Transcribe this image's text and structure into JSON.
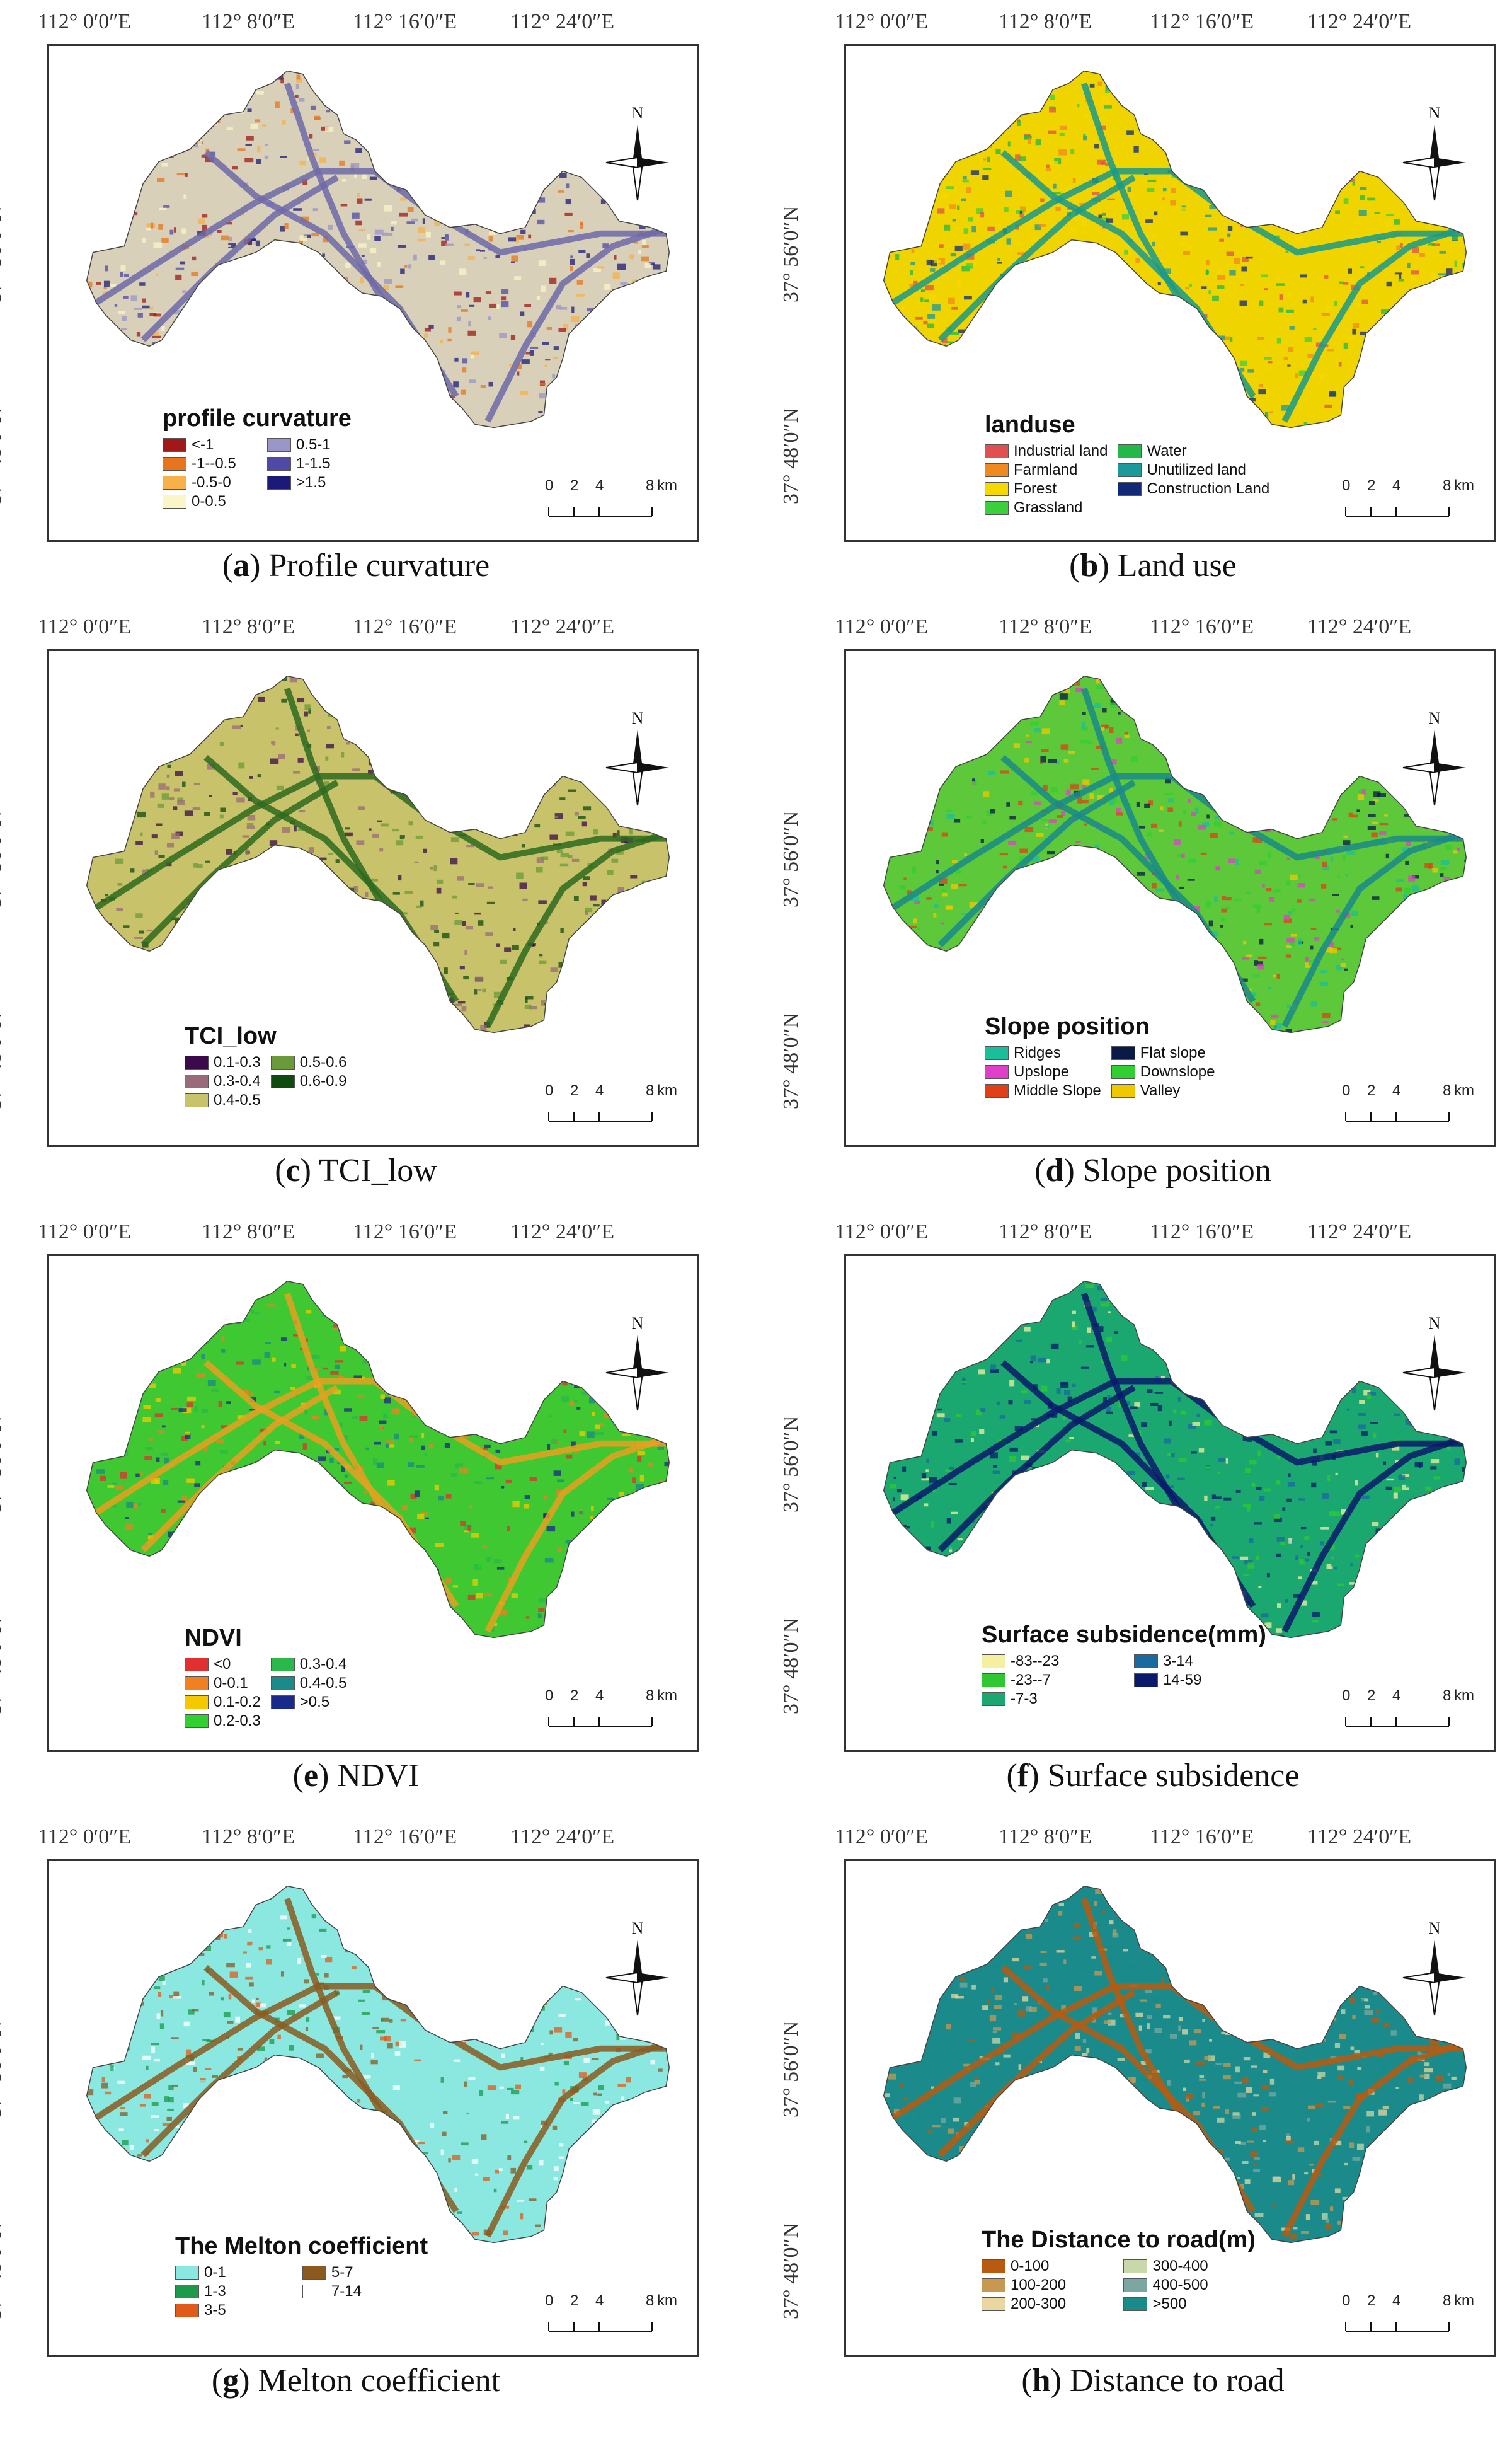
{
  "longitudes": [
    "112°  0′0″E",
    "112°  8′0″E",
    "112°  16′0″E",
    "112°  24′0″E"
  ],
  "latitudes": [
    "37°  56′0″N",
    "37°  48′0″N"
  ],
  "north_label": "N",
  "scale": {
    "ticks": [
      "0",
      "2",
      "4",
      "8"
    ],
    "unit": "km"
  },
  "panels": [
    {
      "letter": "a",
      "caption": "Profile curvature",
      "legend_title": "profile curvature",
      "legend_cols": 2,
      "base_color": "#d8d0b8",
      "accent_color": "#6e6aa8",
      "items": [
        {
          "label": "<-1",
          "color": "#a01818"
        },
        {
          "label": "0.5-1",
          "color": "#9b96c8"
        },
        {
          "label": "-1--0.5",
          "color": "#e8741e"
        },
        {
          "label": "1-1.5",
          "color": "#4f4aa8"
        },
        {
          "label": "-0.5-0",
          "color": "#f7b04a"
        },
        {
          "label": ">1.5",
          "color": "#1c1a78"
        },
        {
          "label": "0-0.5",
          "color": "#fbf6c8"
        }
      ]
    },
    {
      "letter": "b",
      "caption": "Land use",
      "legend_title": "landuse",
      "legend_cols": 2,
      "base_color": "#f0d400",
      "accent_color": "#1a9a8a",
      "items": [
        {
          "label": "Industrial land",
          "color": "#e05050"
        },
        {
          "label": "Water",
          "color": "#22b84a"
        },
        {
          "label": "Farmland",
          "color": "#f08a20"
        },
        {
          "label": "Unutilized land",
          "color": "#1a9a9a"
        },
        {
          "label": "Forest",
          "color": "#f5d800"
        },
        {
          "label": "Construction Land",
          "color": "#102a78"
        },
        {
          "label": "Grassland",
          "color": "#3ccf3c"
        }
      ]
    },
    {
      "letter": "c",
      "caption": "TCI_low",
      "legend_title": "TCI_low",
      "legend_cols": 2,
      "base_color": "#c8c26a",
      "accent_color": "#2e6a1e",
      "items": [
        {
          "label": "0.1-0.3",
          "color": "#3a0a4a"
        },
        {
          "label": "0.5-0.6",
          "color": "#6a9a3a"
        },
        {
          "label": "0.3-0.4",
          "color": "#9a6a7a"
        },
        {
          "label": "0.6-0.9",
          "color": "#0f4a0f"
        },
        {
          "label": "0.4-0.5",
          "color": "#c8c26a"
        }
      ]
    },
    {
      "letter": "d",
      "caption": "Slope position",
      "legend_title": "Slope position",
      "legend_cols": 2,
      "base_color": "#5cc83a",
      "accent_color": "#1a8a8a",
      "items": [
        {
          "label": "Ridges",
          "color": "#1abf9a"
        },
        {
          "label": "Flat slope",
          "color": "#0a1a48"
        },
        {
          "label": "Upslope",
          "color": "#e040c8"
        },
        {
          "label": "Downslope",
          "color": "#30d030"
        },
        {
          "label": "Middle Slope",
          "color": "#e04018"
        },
        {
          "label": "Valley",
          "color": "#f0c800"
        }
      ]
    },
    {
      "letter": "e",
      "caption": "NDVI",
      "legend_title": "NDVI",
      "legend_cols": 2,
      "base_color": "#40c832",
      "accent_color": "#e8a020",
      "items": [
        {
          "label": "<0",
          "color": "#e03030"
        },
        {
          "label": "0.3-0.4",
          "color": "#2ab84a"
        },
        {
          "label": "0-0.1",
          "color": "#f08020"
        },
        {
          "label": "0.4-0.5",
          "color": "#1a8a8a"
        },
        {
          "label": "0.1-0.2",
          "color": "#f5c800"
        },
        {
          "label": ">0.5",
          "color": "#1a2a8a"
        },
        {
          "label": "0.2-0.3",
          "color": "#30d030"
        }
      ]
    },
    {
      "letter": "f",
      "caption": "Surface subsidence",
      "legend_title": "Surface subsidence(mm)",
      "legend_cols": 2,
      "base_color": "#1aa870",
      "accent_color": "#0a1a6a",
      "items": [
        {
          "label": "-83--23",
          "color": "#f5f0a0"
        },
        {
          "label": "3-14",
          "color": "#1a6aa0"
        },
        {
          "label": "-23--7",
          "color": "#30c830"
        },
        {
          "label": "14-59",
          "color": "#0a1a6a"
        },
        {
          "label": "-7-3",
          "color": "#1aa870"
        }
      ]
    },
    {
      "letter": "g",
      "caption": "Melton coefficient",
      "legend_title": "The Melton coefficient",
      "legend_cols": 2,
      "base_color": "#8ae8e0",
      "accent_color": "#8a5a20",
      "items": [
        {
          "label": "0-1",
          "color": "#8ae8e0"
        },
        {
          "label": "5-7",
          "color": "#8a5a20"
        },
        {
          "label": "1-3",
          "color": "#1a9a4a"
        },
        {
          "label": "7-14",
          "color": "#ffffff"
        },
        {
          "label": "3-5",
          "color": "#e05a1a"
        }
      ]
    },
    {
      "letter": "h",
      "caption": "Distance to road",
      "legend_title": "The Distance to road(m)",
      "legend_cols": 2,
      "base_color": "#1a8a8a",
      "accent_color": "#b85a10",
      "items": [
        {
          "label": "0-100",
          "color": "#b85a10"
        },
        {
          "label": "300-400",
          "color": "#c8d8a8"
        },
        {
          "label": "100-200",
          "color": "#c89850"
        },
        {
          "label": "400-500",
          "color": "#7aa8a0"
        },
        {
          "label": "200-300",
          "color": "#e8d8a0"
        },
        {
          "label": ">500",
          "color": "#1a8a8a"
        }
      ]
    }
  ]
}
